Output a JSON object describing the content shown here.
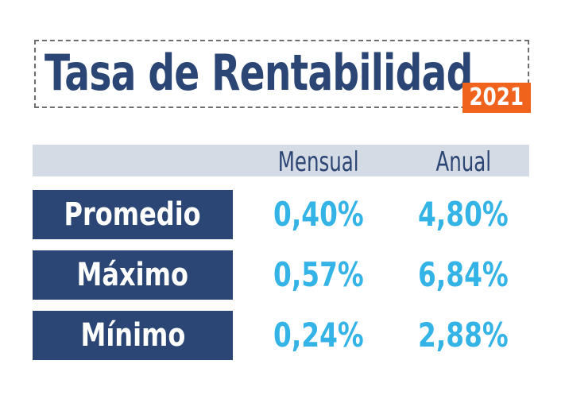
{
  "title": "Tasa de Rentabilidad",
  "year": "2021",
  "columns": {
    "mensual": "Mensual",
    "anual": "Anual"
  },
  "rows": [
    {
      "label": "Promedio",
      "mensual": "0,40%",
      "anual": "4,80%"
    },
    {
      "label": "Máximo",
      "mensual": "0,57%",
      "anual": "6,84%"
    },
    {
      "label": "Mínimo",
      "mensual": "0,24%",
      "anual": "2,88%"
    }
  ],
  "colors": {
    "navy": "#2b4674",
    "accent_orange": "#f0631c",
    "value_blue": "#34b4e6",
    "header_band": "#d5dbe4"
  }
}
